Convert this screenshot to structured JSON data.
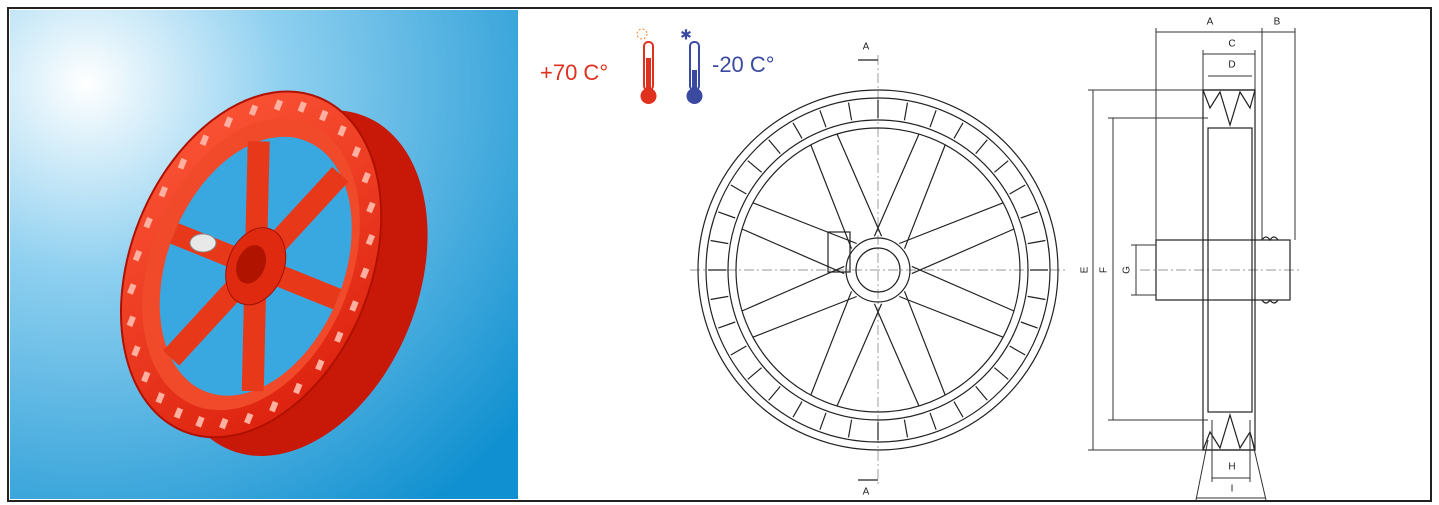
{
  "temperature": {
    "max": "+70 C°",
    "min": "-20 C°"
  },
  "section_marks": [
    "A",
    "A"
  ],
  "dimensions": [
    "A",
    "B",
    "C",
    "D",
    "E",
    "F",
    "G",
    "H",
    "I"
  ]
}
